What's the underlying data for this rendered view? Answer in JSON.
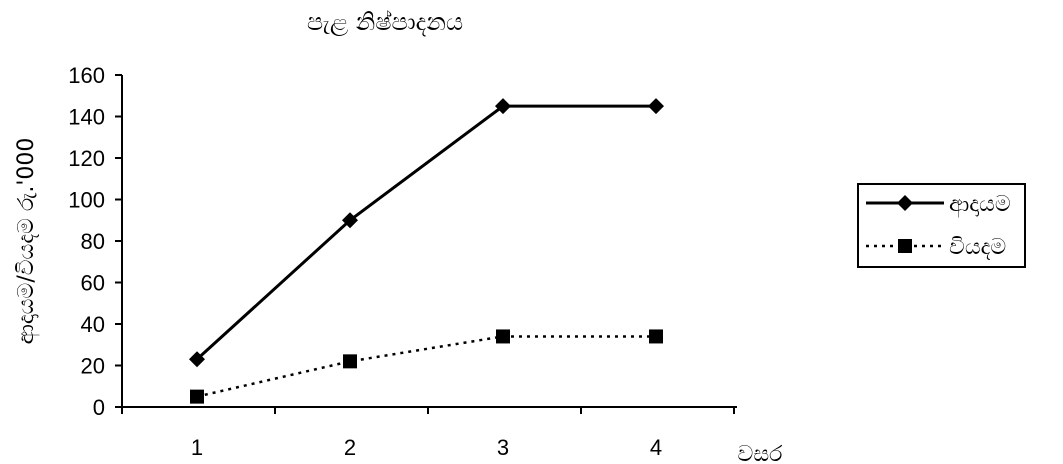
{
  "chart_data": {
    "type": "line",
    "title": "පැළ නිෂ්පාදනය",
    "xlabel": "වසර",
    "ylabel": "ආදායම/වියදම රු.'000",
    "categories": [
      "1",
      "2",
      "3",
      "4"
    ],
    "ylim": [
      0,
      160
    ],
    "yticks": [
      0,
      20,
      40,
      60,
      80,
      100,
      120,
      140,
      160
    ],
    "grid": false,
    "legend_position": "right",
    "series": [
      {
        "name": "ආදායම",
        "values": [
          23,
          90,
          145,
          145
        ],
        "marker": "diamond",
        "line_style": "solid",
        "color": "#000000"
      },
      {
        "name": "වියදම",
        "values": [
          5,
          22,
          34,
          34
        ],
        "marker": "square",
        "line_style": "dotted",
        "color": "#000000"
      }
    ]
  }
}
